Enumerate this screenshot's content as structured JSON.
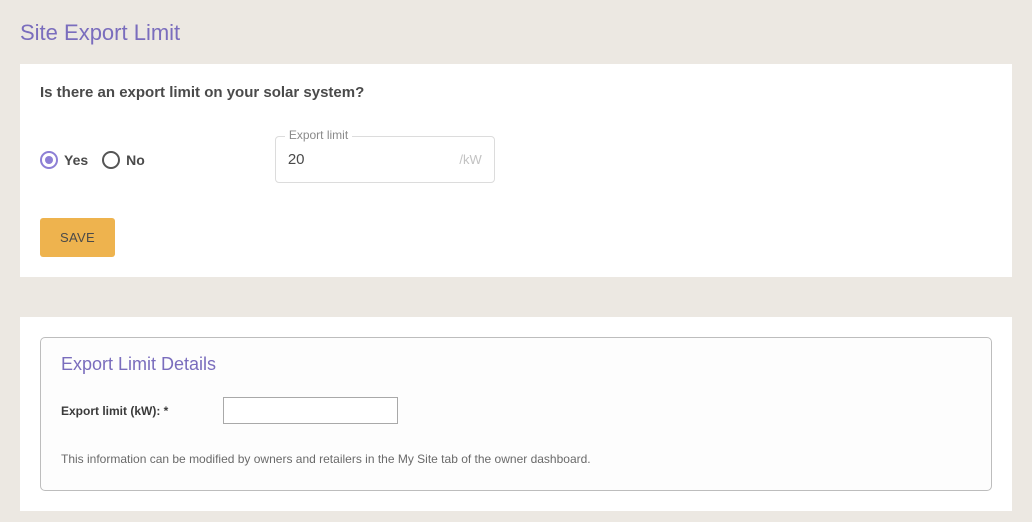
{
  "colors": {
    "page_bg": "#ece8e2",
    "card_bg": "#ffffff",
    "title_color": "#7a6dbd",
    "accent_radio": "#8d7fd5",
    "save_btn_bg": "#eeb34e",
    "text_dark": "#4a4a4a",
    "border_light": "#dcdcdc",
    "border_gray": "#bdbdbd",
    "unit_muted": "#c2c2c2"
  },
  "page": {
    "title": "Site Export Limit"
  },
  "card1": {
    "question": "Is there an export limit on your solar system?",
    "radio": {
      "yes_label": "Yes",
      "no_label": "No",
      "selected": "yes"
    },
    "export_limit_field": {
      "label": "Export limit",
      "value": "20",
      "unit": "/kW"
    },
    "save_button": "SAVE"
  },
  "card2": {
    "title": "Export Limit Details",
    "label": "Export limit (kW): *",
    "input_value": "",
    "note": "This information can be modified by owners and retailers in the My Site tab of the owner dashboard."
  }
}
